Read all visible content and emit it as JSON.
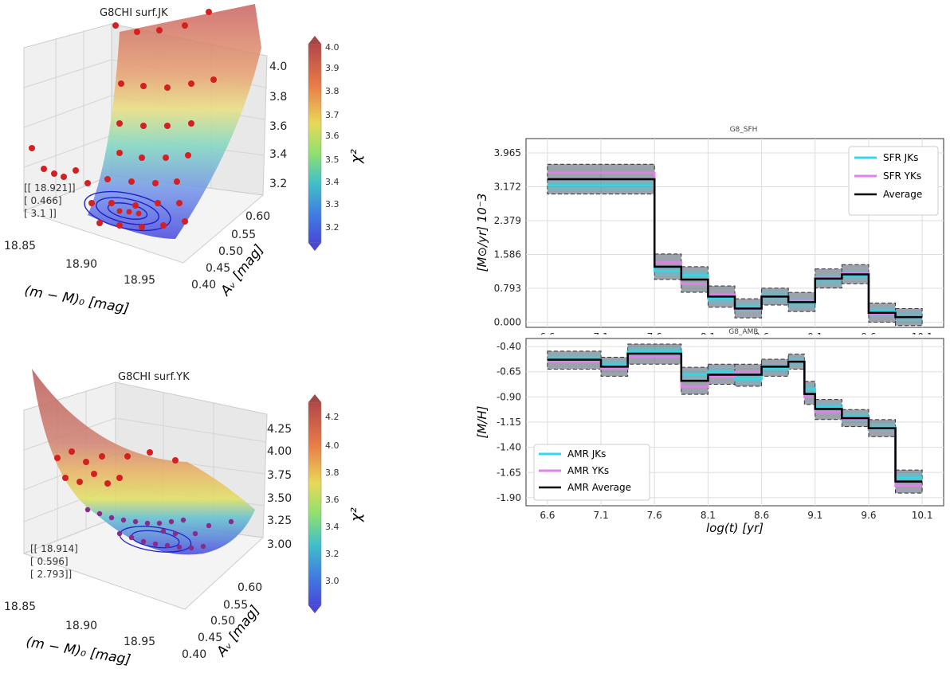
{
  "surf_jk": {
    "title": "G8CHI surf.JK",
    "xlabel": "(m − M)₀ [mag]",
    "ylabel": "Aᵥ [mag]",
    "xticks": [
      "18.85",
      "18.90",
      "18.95"
    ],
    "yticks": [
      "0.40",
      "0.45",
      "0.50",
      "0.55",
      "0.60"
    ],
    "zticks": [
      "3.2",
      "3.4",
      "3.6",
      "3.8",
      "4.0"
    ],
    "best_fit": [
      "[[ 18.921]]",
      "[  0.466]",
      "[  3.1  ]]"
    ],
    "colorbar_label": "χ²",
    "colorbar_ticks": [
      "4.0",
      "3.9",
      "3.8",
      "3.7",
      "3.6",
      "3.5",
      "3.4",
      "3.3",
      "3.2"
    ]
  },
  "surf_yk": {
    "title": "G8CHI surf.YK",
    "xlabel": "(m − M)₀ [mag]",
    "ylabel": "Aᵥ [mag]",
    "xticks": [
      "18.85",
      "18.90",
      "18.95"
    ],
    "yticks": [
      "0.40",
      "0.45",
      "0.50",
      "0.55",
      "0.60"
    ],
    "zticks": [
      "3.00",
      "3.25",
      "3.50",
      "3.75",
      "4.00",
      "4.25"
    ],
    "best_fit": [
      "[[ 18.914]",
      "[  0.596]",
      "[  2.793]]"
    ],
    "colorbar_label": "χ²",
    "colorbar_ticks": [
      "4.2",
      "4.0",
      "3.8",
      "3.6",
      "3.4",
      "3.2",
      "3.0"
    ]
  },
  "colors": {
    "sfr_jk": "#30d8e8",
    "sfr_yk": "#e080e8",
    "average": "#000000",
    "band_dark": "#4a5868",
    "point": "#d42020"
  },
  "chart_data": [
    {
      "type": "line",
      "title": "G8_SFH",
      "xlabel": "",
      "ylabel": "[M⊙/yr] 10⁻3",
      "xticks": [
        "6.6",
        "7.1",
        "7.6",
        "8.1",
        "8.6",
        "9.1",
        "9.6",
        "10.1"
      ],
      "yticks": [
        "0.000",
        "0.793",
        "1.586",
        "2.379",
        "3.172",
        "3.965"
      ],
      "xlim": [
        6.4,
        10.3
      ],
      "ylim": [
        -0.12,
        4.3
      ],
      "step_edges": [
        6.6,
        7.6,
        7.85,
        8.1,
        8.35,
        8.6,
        8.85,
        9.1,
        9.35,
        9.6,
        9.85,
        10.1
      ],
      "series": [
        {
          "name": "SFR JKs",
          "values": [
            3.2,
            1.2,
            1.1,
            0.55,
            0.35,
            0.6,
            0.45,
            1.0,
            1.1,
            0.25,
            0.12
          ]
        },
        {
          "name": "SFR YKs",
          "values": [
            3.5,
            1.4,
            0.9,
            0.65,
            0.3,
            0.6,
            0.5,
            1.05,
            1.15,
            0.2,
            0.12
          ]
        },
        {
          "name": "Average",
          "values": [
            3.35,
            1.3,
            1.0,
            0.6,
            0.32,
            0.6,
            0.47,
            1.02,
            1.12,
            0.22,
            0.12
          ]
        }
      ],
      "legend": [
        "SFR JKs",
        "SFR YKs",
        "Average"
      ],
      "legend_position": "top-right",
      "grid": true
    },
    {
      "type": "line",
      "title": "G8_AMR",
      "xlabel": "log(t) [yr]",
      "ylabel": "[M/H]",
      "xticks": [
        "6.6",
        "7.1",
        "7.6",
        "8.1",
        "8.6",
        "9.1",
        "9.6",
        "10.1"
      ],
      "yticks": [
        "-0.40",
        "-0.65",
        "-0.90",
        "-1.15",
        "-1.40",
        "-1.65",
        "-1.90"
      ],
      "xlim": [
        6.4,
        10.3
      ],
      "ylim": [
        -1.98,
        -0.32
      ],
      "step_edges": [
        6.6,
        7.1,
        7.35,
        7.85,
        8.1,
        8.35,
        8.6,
        8.85,
        9.0,
        9.1,
        9.35,
        9.6,
        9.85,
        10.1
      ],
      "series": [
        {
          "name": "AMR JKs",
          "values": [
            -0.52,
            -0.58,
            -0.45,
            -0.68,
            -0.65,
            -0.72,
            -0.62,
            -0.55,
            -0.82,
            -1.0,
            -1.1,
            -1.2,
            -1.7
          ]
        },
        {
          "name": "AMR YKs",
          "values": [
            -0.55,
            -0.62,
            -0.5,
            -0.8,
            -0.7,
            -0.65,
            -0.6,
            -0.55,
            -0.9,
            -1.05,
            -1.12,
            -1.22,
            -1.78
          ]
        },
        {
          "name": "AMR Average",
          "values": [
            -0.53,
            -0.6,
            -0.47,
            -0.74,
            -0.68,
            -0.68,
            -0.6,
            -0.55,
            -0.87,
            -1.02,
            -1.11,
            -1.21,
            -1.74
          ]
        }
      ],
      "legend": [
        "AMR JKs",
        "AMR YKs",
        "AMR Average"
      ],
      "legend_position": "bottom-left",
      "grid": true
    }
  ]
}
